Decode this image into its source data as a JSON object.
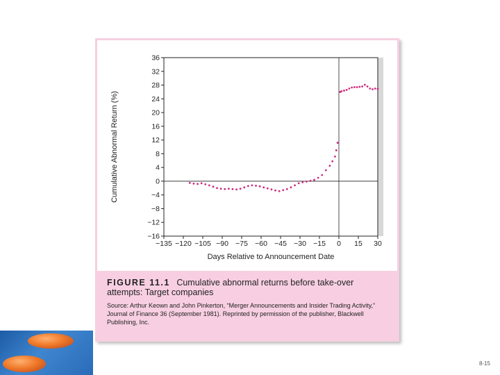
{
  "chart_data": {
    "type": "scatter",
    "xlabel": "Days Relative to Announcement Date",
    "ylabel": "Cumulative Abnormal Return (%)",
    "xlim": [
      -135,
      30
    ],
    "ylim": [
      -16,
      36
    ],
    "xticks": [
      -135,
      -120,
      -105,
      -90,
      -75,
      -60,
      -45,
      -30,
      -15,
      0,
      15,
      30
    ],
    "yticks": [
      -16,
      -12,
      -8,
      -4,
      0,
      4,
      8,
      12,
      16,
      20,
      24,
      28,
      32,
      36
    ],
    "xtick_labels": [
      "−135",
      "−120",
      "−105",
      "−90",
      "−75",
      "−60",
      "−45",
      "−30",
      "−15",
      "0",
      "15",
      "30"
    ],
    "ytick_labels": [
      "−16",
      "−12",
      "−8",
      "−4",
      "0",
      "4",
      "8",
      "12",
      "16",
      "20",
      "24",
      "28",
      "32",
      "36"
    ],
    "grid": false,
    "reference_lines": {
      "x": 0,
      "y": 0
    },
    "series": [
      {
        "color": "#cc2a7f",
        "points": [
          [
            -115,
            -0.5
          ],
          [
            -112,
            -0.7
          ],
          [
            -109,
            -0.8
          ],
          [
            -106,
            -0.6
          ],
          [
            -103,
            -0.9
          ],
          [
            -100,
            -1.2
          ],
          [
            -97,
            -1.6
          ],
          [
            -94,
            -2.0
          ],
          [
            -91,
            -2.2
          ],
          [
            -88,
            -2.3
          ],
          [
            -85,
            -2.2
          ],
          [
            -82,
            -2.3
          ],
          [
            -79,
            -2.4
          ],
          [
            -76,
            -2.2
          ],
          [
            -73,
            -1.8
          ],
          [
            -70,
            -1.4
          ],
          [
            -67,
            -1.2
          ],
          [
            -64,
            -1.3
          ],
          [
            -61,
            -1.5
          ],
          [
            -58,
            -1.8
          ],
          [
            -55,
            -2.1
          ],
          [
            -52,
            -2.4
          ],
          [
            -49,
            -2.7
          ],
          [
            -46,
            -2.9
          ],
          [
            -43,
            -2.6
          ],
          [
            -40,
            -2.3
          ],
          [
            -37,
            -1.8
          ],
          [
            -34,
            -1.2
          ],
          [
            -31,
            -0.6
          ],
          [
            -28,
            -0.3
          ],
          [
            -25,
            -0.1
          ],
          [
            -22,
            0.1
          ],
          [
            -19,
            0.4
          ],
          [
            -16,
            1.0
          ],
          [
            -13,
            1.8
          ],
          [
            -10,
            3.2
          ],
          [
            -7,
            4.5
          ],
          [
            -5,
            5.8
          ],
          [
            -3,
            7.2
          ],
          [
            -2,
            9.0
          ],
          [
            -1,
            11.2
          ],
          [
            1,
            26.0
          ],
          [
            2,
            26.2
          ],
          [
            4,
            26.4
          ],
          [
            6,
            26.6
          ],
          [
            8,
            27.0
          ],
          [
            10,
            27.3
          ],
          [
            12,
            27.4
          ],
          [
            14,
            27.4
          ],
          [
            16,
            27.5
          ],
          [
            18,
            27.6
          ],
          [
            20,
            28.1
          ],
          [
            22,
            27.6
          ],
          [
            24,
            27.0
          ],
          [
            26,
            26.8
          ],
          [
            28,
            27.0
          ],
          [
            30,
            26.9
          ]
        ]
      }
    ]
  },
  "caption": {
    "label": "FIGURE 11.1",
    "text": "Cumulative abnormal returns before take-over attempts: Target companies",
    "source": "Source: Arthur Keown and John Pinkerton, “Merger Announcements and Insider Trading Activity,” Journal of Finance 36 (September 1981). Reprinted by permission of the publisher, Blackwell Publishing, Inc."
  },
  "slide_number": "8-15"
}
